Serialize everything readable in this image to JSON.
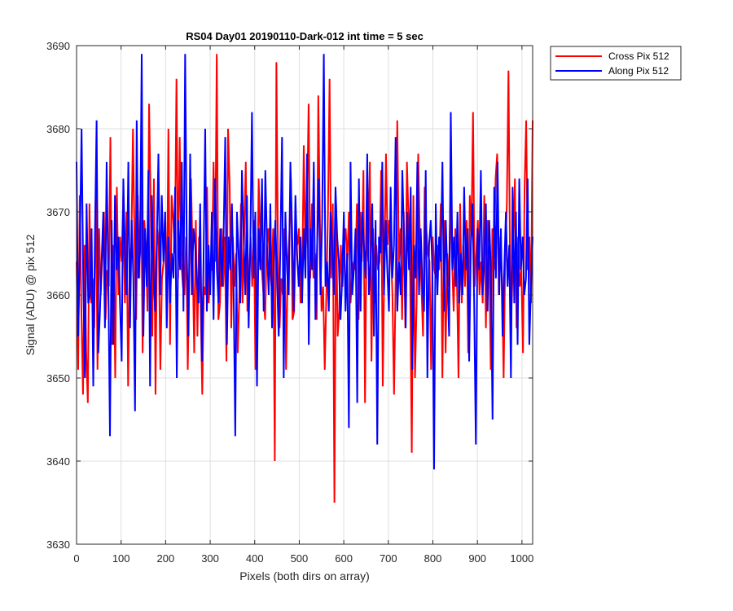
{
  "chart_data": {
    "type": "line",
    "title": "RS04 Day01 20190110-Dark-012 int time = 5 sec",
    "xlabel": "Pixels (both dirs on array)",
    "ylabel": "Signal (ADU) @ pix 512",
    "xlim": [
      0,
      1024
    ],
    "ylim": [
      3630,
      3690
    ],
    "xticks": [
      "0",
      "100",
      "200",
      "300",
      "400",
      "500",
      "600",
      "700",
      "800",
      "900",
      "1000"
    ],
    "yticks": [
      "3630",
      "3640",
      "3650",
      "3660",
      "3670",
      "3680",
      "3690"
    ],
    "grid": true,
    "legend_position": "outside-top-right",
    "series": [
      {
        "name": "Cross Pix 512",
        "color": "#ff0000",
        "values": [
          3664,
          3651,
          3672,
          3658,
          3648,
          3666,
          3653,
          3647,
          3671,
          3659,
          3662,
          3656,
          3674,
          3651,
          3668,
          3660,
          3665,
          3670,
          3657,
          3663,
          3661,
          3679,
          3654,
          3666,
          3650,
          3673,
          3660,
          3667,
          3664,
          3672,
          3659,
          3670,
          3649,
          3664,
          3666,
          3680,
          3666,
          3657,
          3672,
          3662,
          3675,
          3653,
          3669,
          3666,
          3658,
          3683,
          3671,
          3655,
          3674,
          3648,
          3668,
          3666,
          3651,
          3662,
          3664,
          3670,
          3658,
          3680,
          3654,
          3672,
          3669,
          3665,
          3686,
          3662,
          3679,
          3664,
          3661,
          3660,
          3667,
          3651,
          3663,
          3674,
          3665,
          3653,
          3669,
          3655,
          3667,
          3659,
          3648,
          3661,
          3660,
          3673,
          3659,
          3663,
          3663,
          3676,
          3664,
          3689,
          3657,
          3659,
          3668,
          3661,
          3667,
          3652,
          3680,
          3673,
          3656,
          3667,
          3661,
          3665,
          3653,
          3660,
          3671,
          3659,
          3667,
          3676,
          3658,
          3662,
          3667,
          3661,
          3669,
          3651,
          3656,
          3674,
          3667,
          3663,
          3660,
          3657,
          3666,
          3668,
          3663,
          3661,
          3668,
          3640,
          3688,
          3664,
          3656,
          3662,
          3660,
          3668,
          3651,
          3663,
          3667,
          3674,
          3657,
          3658,
          3668,
          3666,
          3668,
          3659,
          3662,
          3678,
          3664,
          3670,
          3683,
          3662,
          3671,
          3662,
          3665,
          3657,
          3684,
          3669,
          3658,
          3661,
          3651,
          3660,
          3670,
          3686,
          3662,
          3671,
          3635,
          3671,
          3655,
          3658,
          3666,
          3661,
          3666,
          3668,
          3664,
          3670,
          3659,
          3662,
          3664,
          3663,
          3671,
          3657,
          3670,
          3664,
          3675,
          3647,
          3669,
          3664,
          3676,
          3652,
          3668,
          3659,
          3666,
          3663,
          3664,
          3675,
          3649,
          3664,
          3677,
          3666,
          3669,
          3666,
          3660,
          3648,
          3662,
          3681,
          3664,
          3668,
          3657,
          3670,
          3656,
          3676,
          3669,
          3662,
          3641,
          3672,
          3650,
          3659,
          3677,
          3667,
          3661,
          3655,
          3673,
          3668,
          3665,
          3664,
          3651,
          3667,
          3663,
          3662,
          3666,
          3663,
          3671,
          3650,
          3669,
          3653,
          3665,
          3661,
          3672,
          3664,
          3658,
          3668,
          3662,
          3650,
          3671,
          3659,
          3666,
          3661,
          3669,
          3653,
          3672,
          3667,
          3682,
          3661,
          3665,
          3669,
          3660,
          3664,
          3659,
          3672,
          3656,
          3669,
          3666,
          3651,
          3668,
          3663,
          3674,
          3677,
          3660,
          3667,
          3662,
          3650,
          3665,
          3671,
          3687,
          3663,
          3659,
          3666,
          3674,
          3656,
          3667,
          3661,
          3663,
          3653,
          3673,
          3681,
          3663,
          3667,
          3659,
          3681
        ]
      },
      {
        "name": "Along Pix 512",
        "color": "#0000ff",
        "values": [
          3676,
          3655,
          3666,
          3680,
          3662,
          3650,
          3671,
          3659,
          3660,
          3668,
          3649,
          3667,
          3681,
          3653,
          3658,
          3664,
          3670,
          3656,
          3676,
          3662,
          3643,
          3669,
          3654,
          3672,
          3663,
          3667,
          3659,
          3652,
          3674,
          3665,
          3660,
          3676,
          3656,
          3669,
          3662,
          3646,
          3681,
          3662,
          3665,
          3689,
          3655,
          3668,
          3661,
          3675,
          3649,
          3672,
          3663,
          3658,
          3666,
          3677,
          3660,
          3672,
          3664,
          3670,
          3656,
          3667,
          3659,
          3665,
          3662,
          3673,
          3650,
          3669,
          3663,
          3676,
          3658,
          3689,
          3665,
          3655,
          3677,
          3660,
          3668,
          3666,
          3662,
          3659,
          3671,
          3652,
          3664,
          3680,
          3658,
          3666,
          3660,
          3670,
          3657,
          3674,
          3663,
          3659,
          3668,
          3661,
          3667,
          3679,
          3654,
          3667,
          3663,
          3671,
          3661,
          3643,
          3670,
          3665,
          3659,
          3675,
          3667,
          3660,
          3672,
          3656,
          3666,
          3682,
          3662,
          3670,
          3649,
          3668,
          3663,
          3674,
          3658,
          3675,
          3666,
          3660,
          3671,
          3656,
          3664,
          3669,
          3662,
          3655,
          3666,
          3679,
          3650,
          3670,
          3663,
          3660,
          3676,
          3668,
          3658,
          3672,
          3665,
          3661,
          3667,
          3659,
          3668,
          3662,
          3677,
          3654,
          3668,
          3663,
          3676,
          3657,
          3666,
          3674,
          3660,
          3669,
          3689,
          3661,
          3664,
          3658,
          3670,
          3666,
          3660,
          3673,
          3667,
          3664,
          3657,
          3662,
          3670,
          3658,
          3665,
          3644,
          3676,
          3660,
          3663,
          3668,
          3647,
          3674,
          3658,
          3670,
          3666,
          3662,
          3677,
          3660,
          3664,
          3671,
          3655,
          3669,
          3642,
          3667,
          3665,
          3676,
          3660,
          3669,
          3663,
          3658,
          3673,
          3662,
          3666,
          3679,
          3658,
          3664,
          3660,
          3675,
          3667,
          3656,
          3670,
          3663,
          3673,
          3651,
          3666,
          3662,
          3676,
          3660,
          3668,
          3661,
          3658,
          3675,
          3650,
          3666,
          3669,
          3663,
          3639,
          3671,
          3660,
          3667,
          3664,
          3676,
          3658,
          3669,
          3662,
          3655,
          3682,
          3663,
          3667,
          3661,
          3670,
          3659,
          3665,
          3660,
          3673,
          3663,
          3668,
          3652,
          3666,
          3671,
          3659,
          3642,
          3668,
          3663,
          3675,
          3660,
          3664,
          3671,
          3658,
          3669,
          3663,
          3645,
          3673,
          3662,
          3676,
          3660,
          3668,
          3655,
          3663,
          3670,
          3661,
          3666,
          3650,
          3673,
          3659,
          3670,
          3654,
          3674,
          3663,
          3667,
          3660,
          3662,
          3674,
          3654,
          3661,
          3667
        ]
      }
    ]
  }
}
